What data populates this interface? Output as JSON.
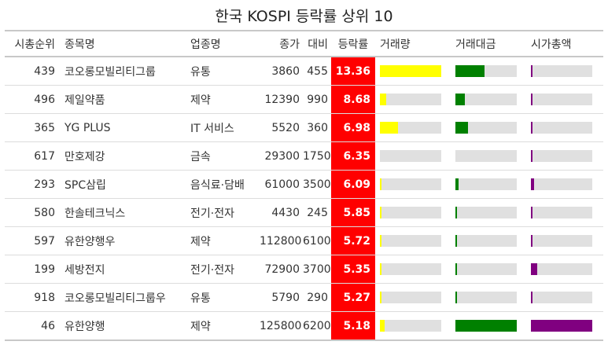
{
  "title": "한국 KOSPI 등락률 상위 10",
  "columns": {
    "code": "시총순위",
    "name": "종목명",
    "sector": "업종명",
    "price": "종가",
    "diff": "대비",
    "rate": "등락률",
    "volume": "거래량",
    "value": "거래대금",
    "mcap": "시가총액"
  },
  "colors": {
    "rate_bg": "#ff0000",
    "volume_bar": "#ffff00",
    "value_bar": "#008000",
    "mcap_bar": "#800080",
    "track": "#e0e0e0"
  },
  "rows": [
    {
      "code": "439",
      "name": "코오롱모빌리티그룹",
      "sector": "유통",
      "price": "3860",
      "diff": "455",
      "rate": "13.36",
      "volume": 1.0,
      "value": 0.47,
      "mcap": 0.03
    },
    {
      "code": "496",
      "name": "제일약품",
      "sector": "제약",
      "price": "12390",
      "diff": "990",
      "rate": "8.68",
      "volume": 0.1,
      "value": 0.16,
      "mcap": 0.02
    },
    {
      "code": "365",
      "name": "YG PLUS",
      "sector": "IT 서비스",
      "price": "5520",
      "diff": "360",
      "rate": "6.98",
      "volume": 0.29,
      "value": 0.2,
      "mcap": 0.03
    },
    {
      "code": "617",
      "name": "만호제강",
      "sector": "금속",
      "price": "29300",
      "diff": "1750",
      "rate": "6.35",
      "volume": 0.0,
      "value": 0.0,
      "mcap": 0.02
    },
    {
      "code": "293",
      "name": "SPC삼립",
      "sector": "음식료·담배",
      "price": "61000",
      "diff": "3500",
      "rate": "6.09",
      "volume": 0.02,
      "value": 0.05,
      "mcap": 0.05
    },
    {
      "code": "580",
      "name": "한솔테크닉스",
      "sector": "전기·전자",
      "price": "4430",
      "diff": "245",
      "rate": "5.85",
      "volume": 0.02,
      "value": 0.02,
      "mcap": 0.02
    },
    {
      "code": "597",
      "name": "유한양행우",
      "sector": "제약",
      "price": "112800",
      "diff": "6100",
      "rate": "5.72",
      "volume": 0.01,
      "value": 0.02,
      "mcap": 0.02
    },
    {
      "code": "199",
      "name": "세방전지",
      "sector": "전기·전자",
      "price": "72900",
      "diff": "3700",
      "rate": "5.35",
      "volume": 0.02,
      "value": 0.03,
      "mcap": 0.1
    },
    {
      "code": "918",
      "name": "코오롱모빌리티그룹우",
      "sector": "유통",
      "price": "5790",
      "diff": "290",
      "rate": "5.27",
      "volume": 0.01,
      "value": 0.01,
      "mcap": 0.01
    },
    {
      "code": "46",
      "name": "유한양행",
      "sector": "제약",
      "price": "125800",
      "diff": "6200",
      "rate": "5.18",
      "volume": 0.08,
      "value": 1.0,
      "mcap": 1.0
    }
  ]
}
